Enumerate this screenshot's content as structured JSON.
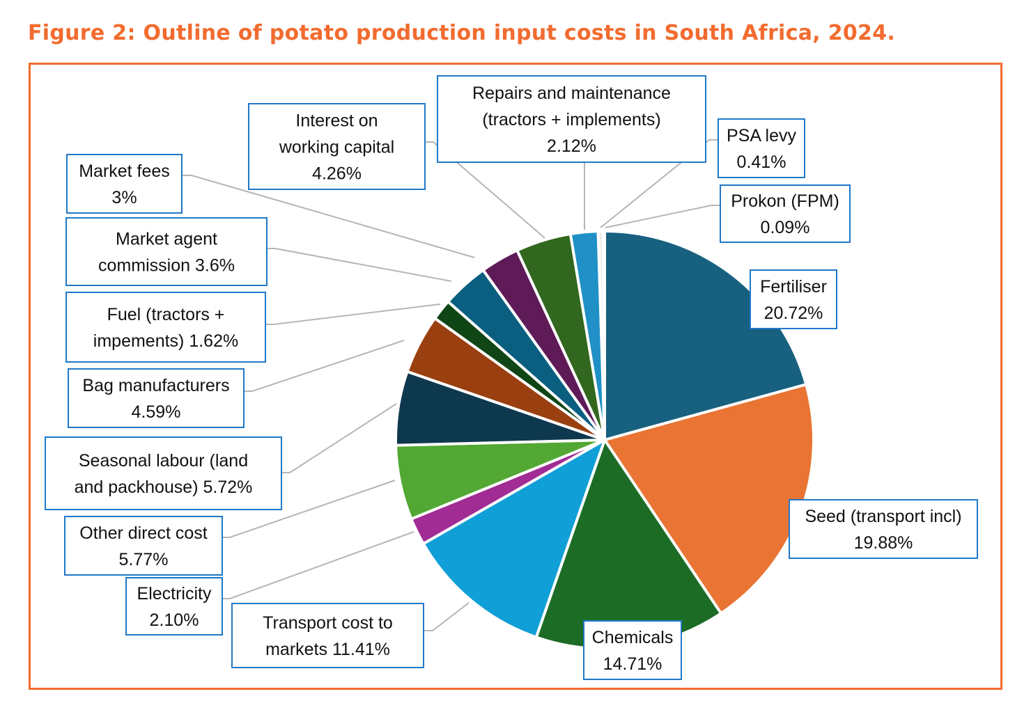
{
  "chart_data": {
    "type": "pie",
    "title": "Figure 2: Outline of potato production input costs in South Africa, 2024.",
    "start": "12 o'clock",
    "direction": "clockwise",
    "unit": "%",
    "slices": [
      {
        "name": "Fertiliser",
        "value": 20.72,
        "label": [
          "Fertiliser",
          "20.72%"
        ],
        "color": "#18607f"
      },
      {
        "name": "Seed (transport incl)",
        "value": 19.88,
        "label": [
          "Seed (transport incl)",
          "19.88%"
        ],
        "color": "#e97434"
      },
      {
        "name": "Chemicals",
        "value": 14.71,
        "label": [
          "Chemicals",
          "14.71%"
        ],
        "color": "#1c6c26"
      },
      {
        "name": "Transport cost to markets",
        "value": 11.41,
        "label": [
          "Transport cost to",
          "markets 11.41%"
        ],
        "color": "#109fd6"
      },
      {
        "name": "Electricity",
        "value": 2.1,
        "label": [
          "Electricity",
          "2.10%"
        ],
        "color": "#a02c94"
      },
      {
        "name": "Other direct cost",
        "value": 5.77,
        "label": [
          "Other direct cost",
          "5.77%"
        ],
        "color": "#52a832"
      },
      {
        "name": "Seasonal labour (land and packhouse)",
        "value": 5.72,
        "label": [
          "Seasonal labour (land",
          "and packhouse) 5.72%"
        ],
        "color": "#0e384e"
      },
      {
        "name": "Bag manufacturers",
        "value": 4.59,
        "label": [
          "Bag manufacturers",
          "4.59%"
        ],
        "color": "#9a4010"
      },
      {
        "name": "Fuel (tractors + impements)",
        "value": 1.62,
        "label": [
          "Fuel (tractors +",
          "impements) 1.62%"
        ],
        "color": "#104516"
      },
      {
        "name": "Market agent commission",
        "value": 3.6,
        "label": [
          "Market agent",
          "commission 3.6%"
        ],
        "color": "#0a5e80"
      },
      {
        "name": "Market fees",
        "value": 3,
        "label": [
          "Market fees",
          "3%"
        ],
        "color": "#5f1a58"
      },
      {
        "name": "Interest on working capital",
        "value": 4.26,
        "label": [
          "Interest on",
          "working capital",
          "4.26%"
        ],
        "color": "#31671e"
      },
      {
        "name": "Repairs and maintenance (tractors + implements)",
        "value": 2.12,
        "label": [
          "Repairs and maintenance",
          "(tractors + implements)",
          "2.12%"
        ],
        "color": "#2090c6"
      },
      {
        "name": "PSA levy",
        "value": 0.41,
        "label": [
          "PSA levy",
          "0.41%"
        ],
        "color": "#f0f0f0"
      },
      {
        "name": "Prokon (FPM)",
        "value": 0.09,
        "label": [
          "Prokon (FPM)",
          "0.09%"
        ],
        "color": "#f08a55"
      }
    ]
  }
}
